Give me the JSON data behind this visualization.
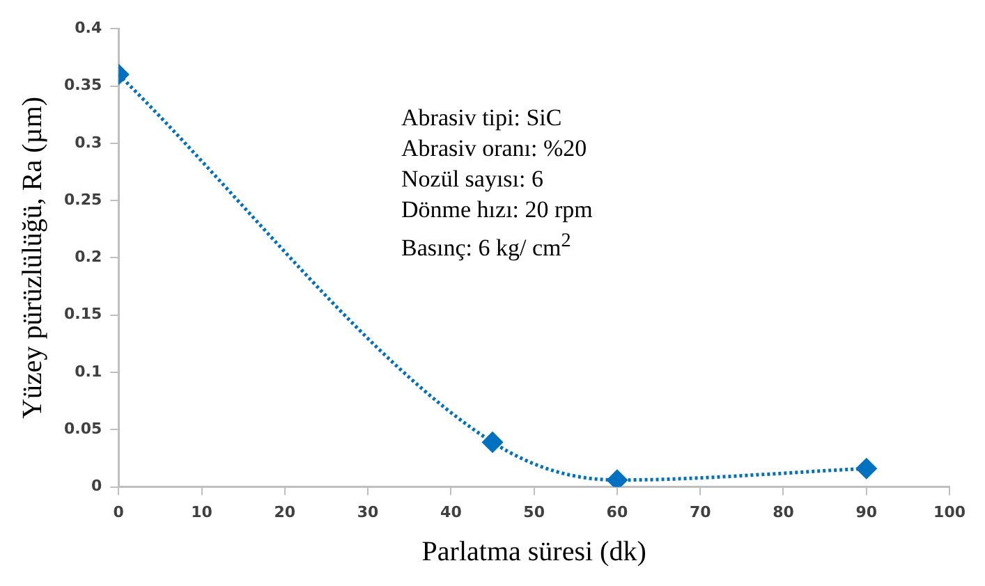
{
  "chart_data": {
    "type": "line",
    "xlabel": "Parlatma süresi (dk)",
    "ylabel": "Yüzey pürüzlülüğü, Ra (µm)",
    "x": [
      0,
      45,
      60,
      90
    ],
    "series": [
      {
        "color": "#0070c0",
        "values": [
          0.36,
          0.039,
          0.006,
          0.016
        ]
      }
    ],
    "xlim": [
      0,
      100
    ],
    "xticks": [
      0,
      10,
      20,
      30,
      40,
      50,
      60,
      70,
      80,
      90,
      100
    ],
    "ylim": [
      0,
      0.4
    ],
    "yticks": [
      0,
      0.05,
      0.1,
      0.15,
      0.2,
      0.25,
      0.3,
      0.35,
      0.4
    ],
    "grid": false,
    "legend": false,
    "marker": "diamond",
    "line_style": "dotted",
    "annotations": [
      "Abrasiv tipi: SiC",
      "Abrasiv oranı: %20",
      "Nozül sayısı: 6",
      "Dönme hızı: 20 rpm",
      "Basınç: 6 kg/ cm$^{2}$"
    ]
  }
}
